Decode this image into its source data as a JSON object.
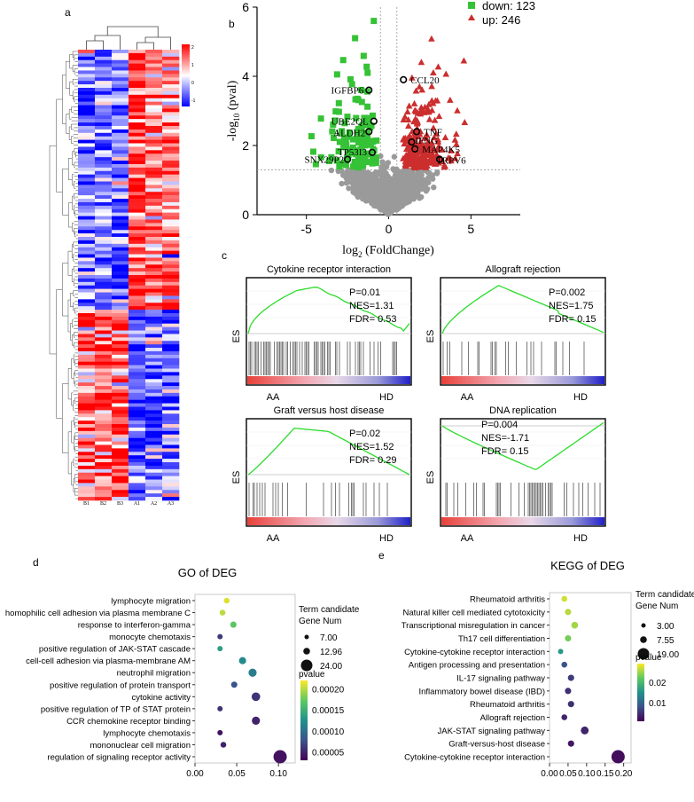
{
  "panels": {
    "a": {
      "label": "a",
      "columns": [
        "B1",
        "B2",
        "B3",
        "A1",
        "A2",
        "A3"
      ],
      "scale_ticks": [
        "2",
        "1",
        "0",
        "-1"
      ]
    },
    "b": {
      "label": "b",
      "legend": {
        "down": "down: 123",
        "up": "up: 246"
      },
      "xlabel": "log2 (FoldChange)",
      "ylabel": "-log10 (pval)",
      "xticks": [
        "-5",
        "0",
        "5"
      ],
      "yticks": [
        "0",
        "2",
        "4",
        "6"
      ],
      "genes": [
        {
          "name": "CCL20",
          "x": 0.9,
          "y": 3.9
        },
        {
          "name": "IGFBP6",
          "x": -1.2,
          "y": 3.6
        },
        {
          "name": "UBE2QL",
          "x": -0.9,
          "y": 2.7
        },
        {
          "name": "ALDH2",
          "x": -1.2,
          "y": 2.4
        },
        {
          "name": "TP53I3",
          "x": -1.0,
          "y": 1.8
        },
        {
          "name": "SNX29P2",
          "x": -2.5,
          "y": 1.6
        },
        {
          "name": "TNF",
          "x": 1.7,
          "y": 2.4
        },
        {
          "name": "IFNG",
          "x": 1.4,
          "y": 2.1
        },
        {
          "name": "MAP4K5",
          "x": 1.6,
          "y": 1.9
        },
        {
          "name": "TRPV6",
          "x": 3.1,
          "y": 1.6
        }
      ],
      "stray_label": "1"
    },
    "c": {
      "label": "c",
      "plots": [
        {
          "title": "Cytokine receptor interaction",
          "p": "P=0.01",
          "nes": "NES=1.31",
          "fdr": "FDR= 0.53",
          "left": "AA",
          "right": "HD",
          "ylabel": "ES"
        },
        {
          "title": "Allograft rejection",
          "p": "P=0.002",
          "nes": "NES=1.75",
          "fdr": "FDR= 0.15",
          "left": "AA",
          "right": "HD",
          "ylabel": "ES"
        },
        {
          "title": "Graft versus host disease",
          "p": "P=0.02",
          "nes": "NES=1.52",
          "fdr": "FDR= 0.29",
          "left": "AA",
          "right": "HD",
          "ylabel": "ES"
        },
        {
          "title": "DNA replication",
          "p": "P=0.004",
          "nes": "NES=-1.71",
          "fdr": "FDR= 0.15",
          "left": "AA",
          "right": "HD",
          "ylabel": "ES"
        }
      ]
    },
    "d": {
      "label": "d"
    },
    "e": {
      "label": "e"
    }
  },
  "chart_data": [
    {
      "type": "scatter",
      "title": "GO of DEG",
      "categories": [
        "lymphocyte migration",
        "homophilic cell adhesion via plasma membrane C",
        "response to interferon-gamma",
        "monocyte chemotaxis",
        "positive regulation of JAK-STAT cascade",
        "cell-cell adhesion via plasma-membrane AM",
        "neutrophil migration",
        "positive regulation of protein transport",
        "cytokine activity",
        "positive regulation of TP of STAT protein",
        "CCR chemokine receptor binding",
        "lymphocyte chemotaxis",
        "mononuclear cell migration",
        "regulation of signaling receptor activity"
      ],
      "x": [
        0.038,
        0.033,
        0.046,
        0.03,
        0.03,
        0.057,
        0.069,
        0.047,
        0.073,
        0.03,
        0.073,
        0.03,
        0.034,
        0.102
      ],
      "count": [
        8,
        8,
        9,
        7,
        7,
        11,
        13,
        9,
        14,
        7,
        13,
        7,
        8,
        24
      ],
      "pvalue": [
        0.00021,
        0.0002,
        0.00017,
        6.5e-05,
        0.000135,
        0.00012,
        0.00011,
        8e-05,
        6e-05,
        6e-05,
        5e-05,
        4e-05,
        5e-05,
        4e-05
      ],
      "xticks": [
        "0.00",
        "0.05",
        "0.10"
      ],
      "xlim": [
        0,
        0.12
      ],
      "size_legend": {
        "title": "Term candidate\nGene Num",
        "values": [
          "7.00",
          "12.96",
          "24.00"
        ]
      },
      "color_legend": {
        "title": "pvalue",
        "ticks": [
          "0.00020",
          "0.00015",
          "0.00010",
          "0.00005"
        ],
        "range": [
          3e-05,
          0.00022
        ]
      }
    },
    {
      "type": "scatter",
      "title": "KEGG of DEG",
      "categories": [
        "Rheumatoid arthritis",
        "Natural killer cell mediated cytotoxicity",
        "Transcriptional misregulation in cancer",
        "Th17 cell differentiation",
        "Cytokine-cytokine receptor interaction",
        "Antigen processing and presentation",
        "IL-17 signaling pathway",
        "Inflammatory bowel disease (IBD)",
        "Rheumatoid arthritis",
        "Allograft rejection",
        "JAK-STAT signaling pathway",
        "Graft-versus-host disease",
        "Cytokine-cytokine receptor interaction"
      ],
      "x": [
        0.04,
        0.05,
        0.068,
        0.05,
        0.03,
        0.04,
        0.058,
        0.05,
        0.058,
        0.04,
        0.095,
        0.058,
        0.185
      ],
      "count": [
        4,
        5,
        6,
        5,
        3,
        4,
        5,
        5,
        5,
        4,
        8,
        5,
        19
      ],
      "pvalue": [
        0.027,
        0.026,
        0.025,
        0.023,
        0.016,
        0.008,
        0.006,
        0.005,
        0.005,
        0.004,
        0.004,
        0.003,
        0.002
      ],
      "xticks": [
        "0.00",
        "0.05",
        "0.10",
        "0.15",
        "0.20"
      ],
      "xlim": [
        0,
        0.22
      ],
      "size_legend": {
        "title": "Term candidate\nGene Num",
        "values": [
          "3.00",
          "7.55",
          "19.00"
        ]
      },
      "color_legend": {
        "title": "pvalue",
        "ticks": [
          "0.02",
          "0.01"
        ],
        "range": [
          0.001,
          0.029
        ]
      }
    }
  ]
}
